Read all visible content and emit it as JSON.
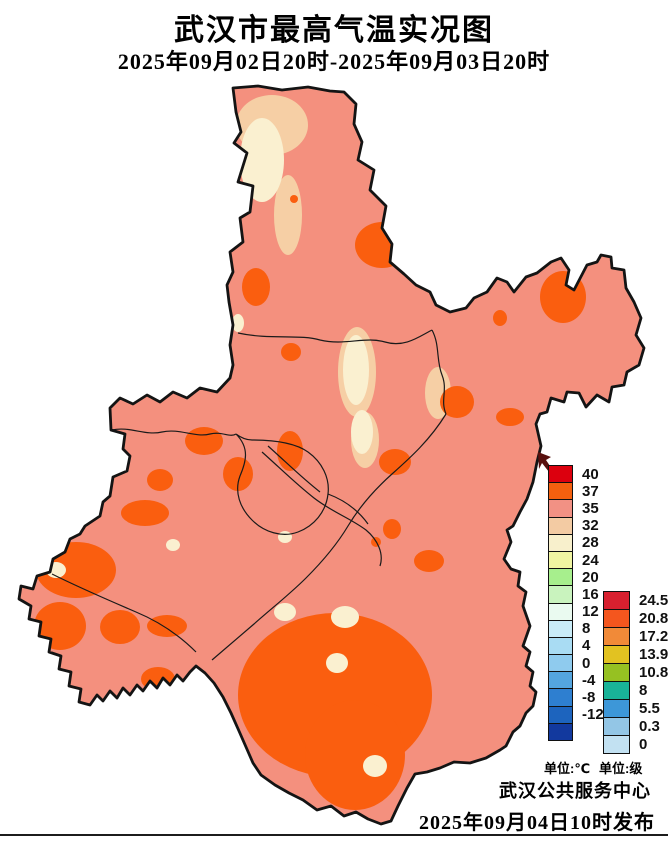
{
  "title": "武汉市最高气温实况图",
  "subtitle": "2025年09月02日20时-2025年09月03日20时",
  "footer": {
    "org": "武汉公共服务中心",
    "issued": "2025年09月04日10时发布"
  },
  "legend_temp": {
    "unit_label": "单位:℃",
    "entries": [
      {
        "label": "40",
        "color": "#DC000E"
      },
      {
        "label": "37",
        "color": "#F4600F"
      },
      {
        "label": "35",
        "color": "#F29184"
      },
      {
        "label": "32",
        "color": "#F3CBA3"
      },
      {
        "label": "28",
        "color": "#F8F0CC"
      },
      {
        "label": "24",
        "color": "#F0F5A2"
      },
      {
        "label": "20",
        "color": "#A7EF8D"
      },
      {
        "label": "16",
        "color": "#C9F3BE"
      },
      {
        "label": "12",
        "color": "#EAFAF0"
      },
      {
        "label": "8",
        "color": "#C9ECF8"
      },
      {
        "label": "4",
        "color": "#A9DCF3"
      },
      {
        "label": "0",
        "color": "#8FCBEE"
      },
      {
        "label": "-4",
        "color": "#54A5DF"
      },
      {
        "label": "-8",
        "color": "#2E7FD0"
      },
      {
        "label": "-12",
        "color": "#1D64BE"
      },
      {
        "label": "",
        "color": "#12399E"
      }
    ]
  },
  "legend_wind": {
    "unit_label": "单位:级",
    "entries": [
      {
        "label": "24.5",
        "color": "#D8202F"
      },
      {
        "label": "20.8",
        "color": "#F4561E"
      },
      {
        "label": "17.2",
        "color": "#F18A38"
      },
      {
        "label": "13.9",
        "color": "#E2C221"
      },
      {
        "label": "10.8",
        "color": "#96C122"
      },
      {
        "label": "8",
        "color": "#19B398"
      },
      {
        "label": "5.5",
        "color": "#3D97D8"
      },
      {
        "label": "0.3",
        "color": "#93C6E6"
      },
      {
        "label": "0",
        "color": "#C2E1F2"
      }
    ]
  },
  "map": {
    "region": "武汉市",
    "colors": {
      "base": "#F4907E",
      "hot": "#FA5E0F",
      "warm32": "#F6CFA5",
      "mild28": "#FAF0D0",
      "outline": "#141414",
      "district_line": "#1a1a1a"
    },
    "zones": {
      "base_means": "35℃左右",
      "hot_means": "37℃以上",
      "warm32_means": "32℃左右",
      "mild28_means": "28℃左右"
    }
  }
}
